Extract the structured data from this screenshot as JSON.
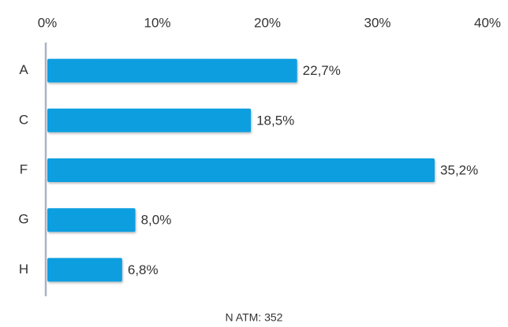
{
  "chart_data": {
    "type": "hbar",
    "categories": [
      "A",
      "C",
      "F",
      "G",
      "H"
    ],
    "values": [
      22.7,
      18.5,
      35.2,
      8.0,
      6.8
    ],
    "value_labels": [
      "22,7%",
      "18,5%",
      "35,2%",
      "8,0%",
      "6,8%"
    ],
    "color": "#0a9ee0",
    "xlim": [
      0,
      40
    ],
    "xticks": [
      {
        "value": 0,
        "label": "0%"
      },
      {
        "value": 10,
        "label": "10%"
      },
      {
        "value": 20,
        "label": "20%"
      },
      {
        "value": 30,
        "label": "30%"
      },
      {
        "value": 40,
        "label": "40%"
      }
    ],
    "note": "N ATM: 352"
  }
}
